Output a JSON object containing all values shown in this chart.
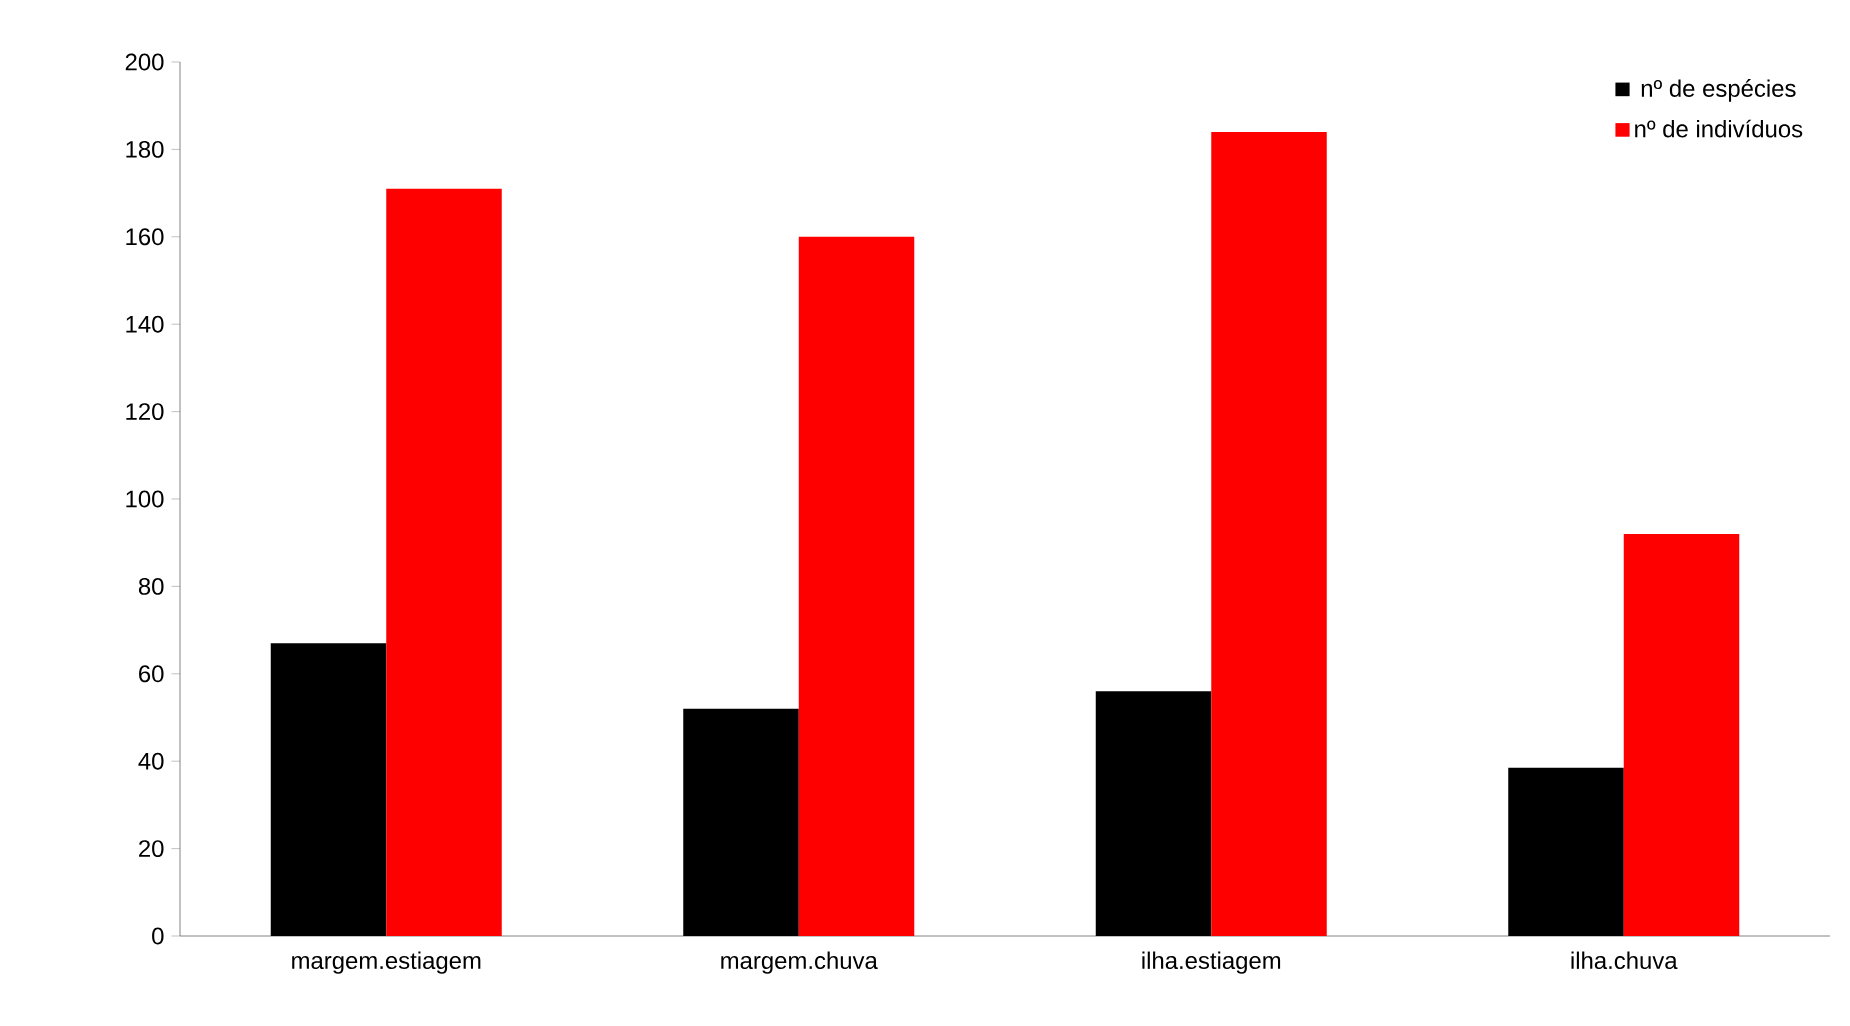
{
  "chart_data": {
    "type": "bar",
    "categories": [
      "margem.estiagem",
      "margem.chuva",
      "ilha.estiagem",
      "ilha.chuva"
    ],
    "series": [
      {
        "name": "nº de espécies",
        "color": "#000000",
        "values": [
          67,
          52,
          56,
          38.5
        ]
      },
      {
        "name": "nº de indivíduos",
        "color": "#ff0000",
        "values": [
          171,
          160,
          184,
          92
        ]
      }
    ],
    "ylim": [
      0,
      200
    ],
    "yticks": [
      0,
      20,
      40,
      60,
      80,
      100,
      120,
      140,
      160,
      180,
      200
    ],
    "legend": "top right"
  }
}
